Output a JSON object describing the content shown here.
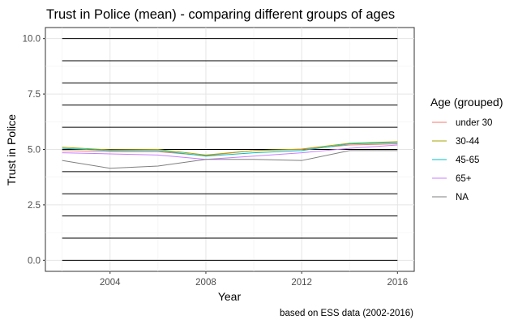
{
  "chart_data": {
    "type": "line",
    "title": "Trust in Police (mean) - comparing different groups of ages",
    "xlabel": "Year",
    "ylabel": "Trust in Police",
    "caption": "based on ESS data (2002-2016)",
    "xlim": [
      2002,
      2016
    ],
    "ylim": [
      0,
      10
    ],
    "x_ticks": [
      2004,
      2008,
      2012,
      2016
    ],
    "x_tick_labels": [
      "2004",
      "2008",
      "2012",
      "2016"
    ],
    "y_ticks": [
      0,
      2.5,
      5,
      7.5,
      10
    ],
    "y_tick_labels": [
      "0.0",
      "2.5",
      "5.0",
      "7.5",
      "10.0"
    ],
    "reference_lines": [
      0,
      1,
      2,
      3,
      4,
      5,
      6,
      7,
      8,
      9,
      10
    ],
    "grid": true,
    "legend_title": "Age (grouped)",
    "legend_position": "right",
    "x": [
      2002,
      2004,
      2006,
      2008,
      2010,
      2012,
      2014,
      2016
    ],
    "series": [
      {
        "name": "under 30",
        "color": "#F8766D",
        "values": [
          4.95,
          4.9,
          4.9,
          4.72,
          4.95,
          5.0,
          5.2,
          5.25
        ]
      },
      {
        "name": "30-44",
        "color": "#A3A500",
        "values": [
          5.1,
          4.98,
          5.0,
          4.75,
          4.95,
          5.02,
          5.28,
          5.35
        ]
      },
      {
        "name": "45-65",
        "color": "#00BFC4",
        "values": [
          5.05,
          4.95,
          4.95,
          4.7,
          4.85,
          4.95,
          5.25,
          5.3
        ]
      },
      {
        "name": "65+",
        "color": "#C77CFF",
        "values": [
          4.85,
          4.8,
          4.75,
          4.55,
          4.7,
          4.85,
          5.05,
          5.2
        ]
      },
      {
        "name": "NA",
        "color": "#7F7F7F",
        "values": [
          4.5,
          4.15,
          4.25,
          4.55,
          4.55,
          4.5,
          4.95,
          4.95
        ]
      }
    ]
  }
}
